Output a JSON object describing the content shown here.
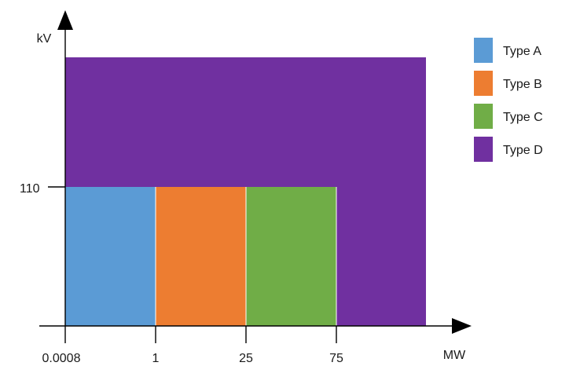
{
  "diagram": {
    "y_axis_label": "kV",
    "x_axis_label": "MW",
    "y_tick_label": "110",
    "x_tick_labels": [
      "0.0008",
      "1",
      "25",
      "75"
    ]
  },
  "zones": [
    {
      "name": "Type D",
      "color": "#7030a0",
      "mw_from": "0.0008",
      "mw_to": "beyond 75",
      "kv_from": "0",
      "kv_to": "above 110"
    },
    {
      "name": "Type A",
      "color": "#5b9bd5",
      "mw_from": "0.0008",
      "mw_to": "1",
      "kv_from": "0",
      "kv_to": "110"
    },
    {
      "name": "Type B",
      "color": "#ed7d31",
      "mw_from": "1",
      "mw_to": "25",
      "kv_from": "0",
      "kv_to": "110"
    },
    {
      "name": "Type C",
      "color": "#70ad47",
      "mw_from": "25",
      "mw_to": "75",
      "kv_from": "0",
      "kv_to": "110"
    }
  ],
  "legend": {
    "items": [
      {
        "label": "Type A",
        "color": "#5b9bd5"
      },
      {
        "label": "Type B",
        "color": "#ed7d31"
      },
      {
        "label": "Type C",
        "color": "#70ad47"
      },
      {
        "label": "Type D",
        "color": "#7030a0"
      }
    ]
  }
}
